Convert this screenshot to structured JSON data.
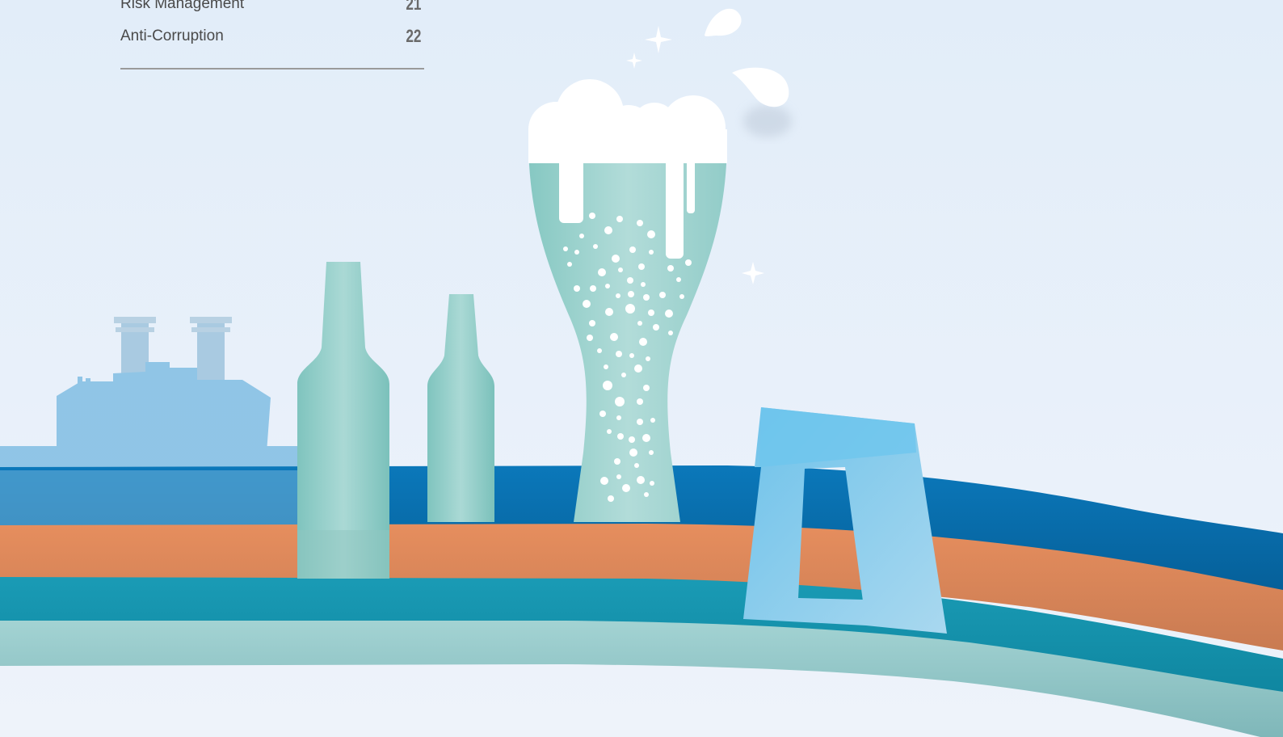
{
  "toc": {
    "items": [
      {
        "label": "Risk Management",
        "page": "21"
      },
      {
        "label": "Anti-Corruption",
        "page": "22"
      }
    ]
  },
  "colors": {
    "sky_top": "#e4eefa",
    "sky_bottom": "#eef3fa",
    "band_blue": "#0a6fb0",
    "band_orange": "#e08a5c",
    "band_teal": "#1a96b0",
    "band_mint": "#9ccfcf",
    "bottle": "#8ccbc6",
    "glass": "#a8d6d3",
    "foam": "#ffffff",
    "factory": "#8cc3e6",
    "logo": "#7ec6ea"
  },
  "icons": [
    "factory-silhouette",
    "bottle-icon",
    "beer-glass-icon",
    "bubble-dots",
    "sparkle-icon",
    "droplet-icon",
    "brand-logo-shape"
  ]
}
